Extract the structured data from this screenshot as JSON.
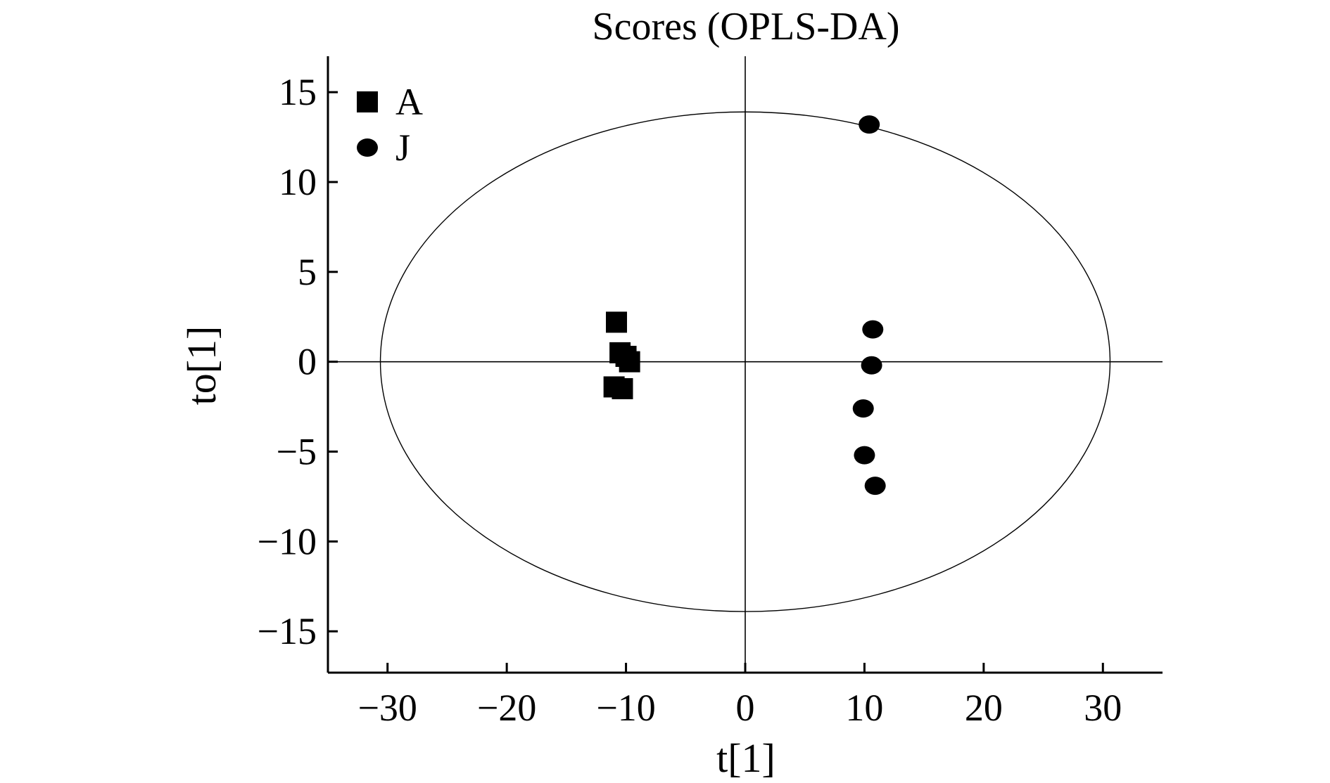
{
  "chart_data": {
    "type": "scatter",
    "title": "Scores (OPLS-DA)",
    "xlabel": "t[1]",
    "ylabel": "to[1]",
    "xlim": [
      -35,
      35
    ],
    "ylim": [
      -17.3,
      17
    ],
    "x_ticks": [
      -30,
      -20,
      -10,
      0,
      10,
      20,
      30
    ],
    "x_tick_labels": [
      "−30",
      "−20",
      "−10",
      "0",
      "10",
      "20",
      "30"
    ],
    "y_ticks": [
      15,
      10,
      5,
      0,
      -5,
      -10,
      -15
    ],
    "y_tick_labels": [
      "15",
      "10",
      "5",
      "0",
      "−5",
      "−10",
      "−15"
    ],
    "legend_position": "top-left",
    "reference_lines": {
      "x": 0,
      "y": 0
    },
    "confidence_ellipse": {
      "center": [
        0,
        0
      ],
      "rx": 30.6,
      "ry": 13.9
    },
    "series": [
      {
        "name": "A",
        "marker": "square",
        "color": "#000000",
        "points": [
          {
            "x": -10.8,
            "y": 2.2
          },
          {
            "x": -10.5,
            "y": 0.5
          },
          {
            "x": -10.0,
            "y": 0.3
          },
          {
            "x": -9.7,
            "y": 0.0
          },
          {
            "x": -11.0,
            "y": -1.4
          },
          {
            "x": -10.3,
            "y": -1.5
          }
        ]
      },
      {
        "name": "J",
        "marker": "circle",
        "color": "#000000",
        "points": [
          {
            "x": 10.4,
            "y": 13.2
          },
          {
            "x": 10.7,
            "y": 1.8
          },
          {
            "x": 10.6,
            "y": -0.2
          },
          {
            "x": 9.9,
            "y": -2.6
          },
          {
            "x": 10.0,
            "y": -5.2
          },
          {
            "x": 10.9,
            "y": -6.9
          }
        ]
      }
    ]
  }
}
